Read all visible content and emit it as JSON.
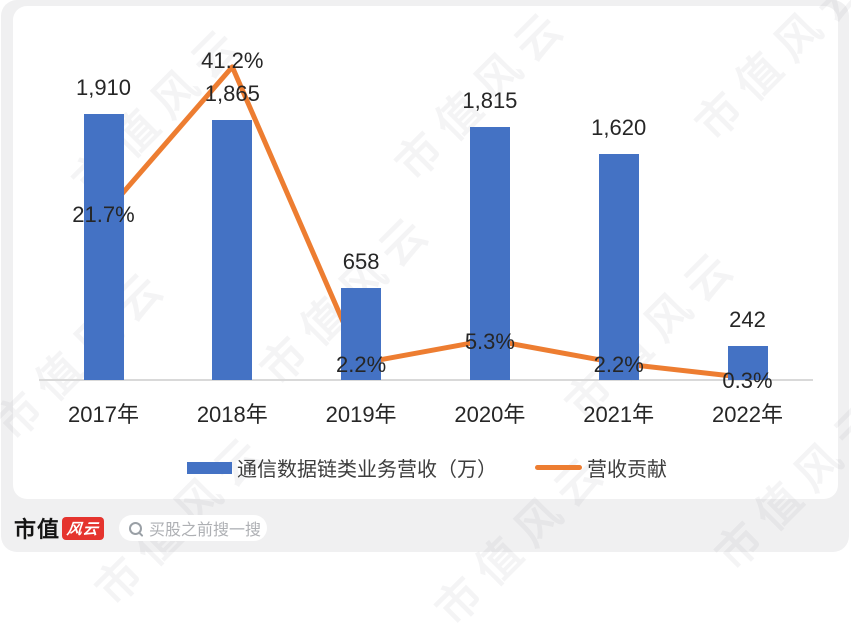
{
  "chart_data": {
    "type": "bar",
    "subtype": "bar + line combo",
    "title": "",
    "categories": [
      "2017年",
      "2018年",
      "2019年",
      "2020年",
      "2021年",
      "2022年"
    ],
    "series": [
      {
        "name": "通信数据链类业务营收（万）",
        "kind": "bar",
        "color": "#4472C4",
        "values": [
          1910,
          1865,
          658,
          1815,
          1620,
          242
        ],
        "labels": [
          "1,910",
          "1,865",
          "658",
          "1,815",
          "1,620",
          "242"
        ]
      },
      {
        "name": "营收贡献",
        "kind": "line",
        "color": "#ED7D31",
        "values": [
          21.7,
          41.2,
          2.2,
          5.3,
          2.2,
          0.3
        ],
        "labels": [
          "21.7%",
          "41.2%",
          "2.2%",
          "5.3%",
          "2.2%",
          "0.3%"
        ]
      }
    ],
    "ylim_bar": [
      0,
      2000
    ],
    "ylim_line_pct": [
      0,
      45
    ],
    "grid": false,
    "legend_position": "bottom",
    "axis_line_color": "#D9D9D9",
    "data_label_color": "#262626"
  },
  "watermark": {
    "text": "市值风云"
  },
  "footer": {
    "brand_text": "市值",
    "brand_badge": "风云",
    "search_placeholder": "买股之前搜一搜"
  },
  "colors": {
    "bar": "#4472C4",
    "line": "#ED7D31",
    "background": "#F0F0F1",
    "card": "#FFFFFF",
    "axis": "#D9D9D9",
    "badge_red": "#E5342E",
    "placeholder_text": "#AEB0B4"
  }
}
